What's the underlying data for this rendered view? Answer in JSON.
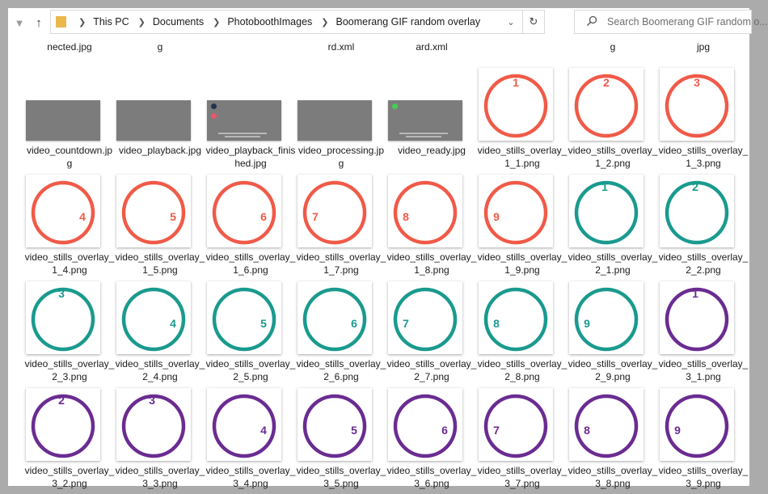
{
  "address_bar": {
    "crumbs": [
      "This PC",
      "Documents",
      "PhotoboothImages",
      "Boomerang GIF random overlay"
    ]
  },
  "search": {
    "placeholder": "Search Boomerang GIF random o..."
  },
  "colors": {
    "set1": "#f05a48",
    "set2": "#1a9a8e",
    "set3": "#6a2c91",
    "gray_thumb": "#7c7c7c",
    "dot_dark": "#22334f",
    "dot_red": "#e8586a",
    "dot_green": "#45cc55"
  },
  "clipped_labels": [
    "nected.jpg",
    "g",
    "",
    "rd.xml",
    "ard.xml",
    "",
    "g",
    "jpg"
  ],
  "gray_files": [
    {
      "label": "video_countdown.jpg",
      "marks": []
    },
    {
      "label": "video_playback.jpg",
      "marks": []
    },
    {
      "label": "video_playback_finished.jpg",
      "marks": [
        "dot_dark",
        "dot_red"
      ]
    },
    {
      "label": "video_processing.jpg",
      "marks": []
    },
    {
      "label": "video_ready.jpg",
      "marks": [
        "dot_green"
      ]
    }
  ],
  "overlay_files": [
    {
      "label": "video_stills_overlay_1_1.png",
      "set": 1,
      "number": "1"
    },
    {
      "label": "video_stills_overlay_1_2.png",
      "set": 1,
      "number": "2"
    },
    {
      "label": "video_stills_overlay_1_3.png",
      "set": 1,
      "number": "3"
    },
    {
      "label": "video_stills_overlay_1_4.png",
      "set": 1,
      "number": "4"
    },
    {
      "label": "video_stills_overlay_1_5.png",
      "set": 1,
      "number": "5"
    },
    {
      "label": "video_stills_overlay_1_6.png",
      "set": 1,
      "number": "6"
    },
    {
      "label": "video_stills_overlay_1_7.png",
      "set": 1,
      "number": "7"
    },
    {
      "label": "video_stills_overlay_1_8.png",
      "set": 1,
      "number": "8"
    },
    {
      "label": "video_stills_overlay_1_9.png",
      "set": 1,
      "number": "9"
    },
    {
      "label": "video_stills_overlay_2_1.png",
      "set": 2,
      "number": "1"
    },
    {
      "label": "video_stills_overlay_2_2.png",
      "set": 2,
      "number": "2"
    },
    {
      "label": "video_stills_overlay_2_3.png",
      "set": 2,
      "number": "3"
    },
    {
      "label": "video_stills_overlay_2_4.png",
      "set": 2,
      "number": "4"
    },
    {
      "label": "video_stills_overlay_2_5.png",
      "set": 2,
      "number": "5"
    },
    {
      "label": "video_stills_overlay_2_6.png",
      "set": 2,
      "number": "6"
    },
    {
      "label": "video_stills_overlay_2_7.png",
      "set": 2,
      "number": "7"
    },
    {
      "label": "video_stills_overlay_2_8.png",
      "set": 2,
      "number": "8"
    },
    {
      "label": "video_stills_overlay_2_9.png",
      "set": 2,
      "number": "9"
    },
    {
      "label": "video_stills_overlay_3_1.png",
      "set": 3,
      "number": "1"
    },
    {
      "label": "video_stills_overlay_3_2.png",
      "set": 3,
      "number": "2"
    },
    {
      "label": "video_stills_overlay_3_3.png",
      "set": 3,
      "number": "3"
    },
    {
      "label": "video_stills_overlay_3_4.png",
      "set": 3,
      "number": "4"
    },
    {
      "label": "video_stills_overlay_3_5.png",
      "set": 3,
      "number": "5"
    },
    {
      "label": "video_stills_overlay_3_6.png",
      "set": 3,
      "number": "6"
    },
    {
      "label": "video_stills_overlay_3_7.png",
      "set": 3,
      "number": "7"
    },
    {
      "label": "video_stills_overlay_3_8.png",
      "set": 3,
      "number": "8"
    },
    {
      "label": "video_stills_overlay_3_9.png",
      "set": 3,
      "number": "9"
    }
  ]
}
